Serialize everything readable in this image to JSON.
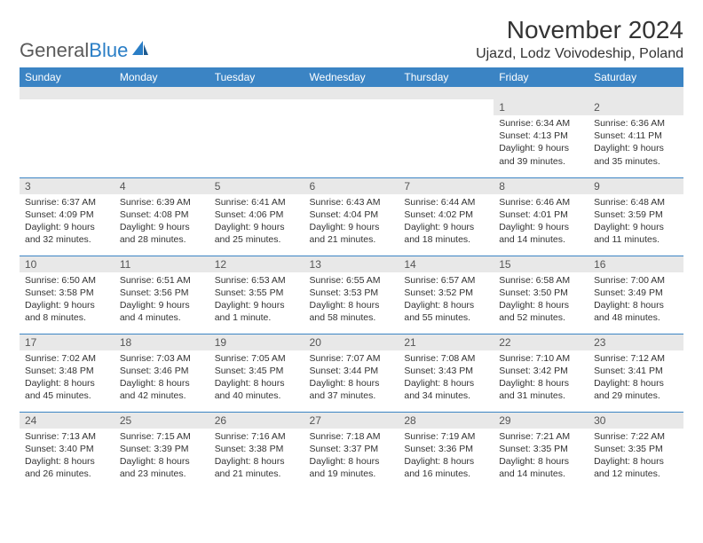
{
  "logo": {
    "text1": "General",
    "text2": "Blue"
  },
  "title": "November 2024",
  "location": "Ujazd, Lodz Voivodeship, Poland",
  "colors": {
    "header_bg": "#3b84c4",
    "header_text": "#ffffff",
    "daynum_bg": "#e8e8e8",
    "border": "#3b84c4",
    "logo_gray": "#5a5a5a",
    "logo_blue": "#2a7ec6"
  },
  "dayHeaders": [
    "Sunday",
    "Monday",
    "Tuesday",
    "Wednesday",
    "Thursday",
    "Friday",
    "Saturday"
  ],
  "weeks": [
    [
      {
        "n": "",
        "sunrise": "",
        "sunset": "",
        "daylight": ""
      },
      {
        "n": "",
        "sunrise": "",
        "sunset": "",
        "daylight": ""
      },
      {
        "n": "",
        "sunrise": "",
        "sunset": "",
        "daylight": ""
      },
      {
        "n": "",
        "sunrise": "",
        "sunset": "",
        "daylight": ""
      },
      {
        "n": "",
        "sunrise": "",
        "sunset": "",
        "daylight": ""
      },
      {
        "n": "1",
        "sunrise": "Sunrise: 6:34 AM",
        "sunset": "Sunset: 4:13 PM",
        "daylight": "Daylight: 9 hours and 39 minutes."
      },
      {
        "n": "2",
        "sunrise": "Sunrise: 6:36 AM",
        "sunset": "Sunset: 4:11 PM",
        "daylight": "Daylight: 9 hours and 35 minutes."
      }
    ],
    [
      {
        "n": "3",
        "sunrise": "Sunrise: 6:37 AM",
        "sunset": "Sunset: 4:09 PM",
        "daylight": "Daylight: 9 hours and 32 minutes."
      },
      {
        "n": "4",
        "sunrise": "Sunrise: 6:39 AM",
        "sunset": "Sunset: 4:08 PM",
        "daylight": "Daylight: 9 hours and 28 minutes."
      },
      {
        "n": "5",
        "sunrise": "Sunrise: 6:41 AM",
        "sunset": "Sunset: 4:06 PM",
        "daylight": "Daylight: 9 hours and 25 minutes."
      },
      {
        "n": "6",
        "sunrise": "Sunrise: 6:43 AM",
        "sunset": "Sunset: 4:04 PM",
        "daylight": "Daylight: 9 hours and 21 minutes."
      },
      {
        "n": "7",
        "sunrise": "Sunrise: 6:44 AM",
        "sunset": "Sunset: 4:02 PM",
        "daylight": "Daylight: 9 hours and 18 minutes."
      },
      {
        "n": "8",
        "sunrise": "Sunrise: 6:46 AM",
        "sunset": "Sunset: 4:01 PM",
        "daylight": "Daylight: 9 hours and 14 minutes."
      },
      {
        "n": "9",
        "sunrise": "Sunrise: 6:48 AM",
        "sunset": "Sunset: 3:59 PM",
        "daylight": "Daylight: 9 hours and 11 minutes."
      }
    ],
    [
      {
        "n": "10",
        "sunrise": "Sunrise: 6:50 AM",
        "sunset": "Sunset: 3:58 PM",
        "daylight": "Daylight: 9 hours and 8 minutes."
      },
      {
        "n": "11",
        "sunrise": "Sunrise: 6:51 AM",
        "sunset": "Sunset: 3:56 PM",
        "daylight": "Daylight: 9 hours and 4 minutes."
      },
      {
        "n": "12",
        "sunrise": "Sunrise: 6:53 AM",
        "sunset": "Sunset: 3:55 PM",
        "daylight": "Daylight: 9 hours and 1 minute."
      },
      {
        "n": "13",
        "sunrise": "Sunrise: 6:55 AM",
        "sunset": "Sunset: 3:53 PM",
        "daylight": "Daylight: 8 hours and 58 minutes."
      },
      {
        "n": "14",
        "sunrise": "Sunrise: 6:57 AM",
        "sunset": "Sunset: 3:52 PM",
        "daylight": "Daylight: 8 hours and 55 minutes."
      },
      {
        "n": "15",
        "sunrise": "Sunrise: 6:58 AM",
        "sunset": "Sunset: 3:50 PM",
        "daylight": "Daylight: 8 hours and 52 minutes."
      },
      {
        "n": "16",
        "sunrise": "Sunrise: 7:00 AM",
        "sunset": "Sunset: 3:49 PM",
        "daylight": "Daylight: 8 hours and 48 minutes."
      }
    ],
    [
      {
        "n": "17",
        "sunrise": "Sunrise: 7:02 AM",
        "sunset": "Sunset: 3:48 PM",
        "daylight": "Daylight: 8 hours and 45 minutes."
      },
      {
        "n": "18",
        "sunrise": "Sunrise: 7:03 AM",
        "sunset": "Sunset: 3:46 PM",
        "daylight": "Daylight: 8 hours and 42 minutes."
      },
      {
        "n": "19",
        "sunrise": "Sunrise: 7:05 AM",
        "sunset": "Sunset: 3:45 PM",
        "daylight": "Daylight: 8 hours and 40 minutes."
      },
      {
        "n": "20",
        "sunrise": "Sunrise: 7:07 AM",
        "sunset": "Sunset: 3:44 PM",
        "daylight": "Daylight: 8 hours and 37 minutes."
      },
      {
        "n": "21",
        "sunrise": "Sunrise: 7:08 AM",
        "sunset": "Sunset: 3:43 PM",
        "daylight": "Daylight: 8 hours and 34 minutes."
      },
      {
        "n": "22",
        "sunrise": "Sunrise: 7:10 AM",
        "sunset": "Sunset: 3:42 PM",
        "daylight": "Daylight: 8 hours and 31 minutes."
      },
      {
        "n": "23",
        "sunrise": "Sunrise: 7:12 AM",
        "sunset": "Sunset: 3:41 PM",
        "daylight": "Daylight: 8 hours and 29 minutes."
      }
    ],
    [
      {
        "n": "24",
        "sunrise": "Sunrise: 7:13 AM",
        "sunset": "Sunset: 3:40 PM",
        "daylight": "Daylight: 8 hours and 26 minutes."
      },
      {
        "n": "25",
        "sunrise": "Sunrise: 7:15 AM",
        "sunset": "Sunset: 3:39 PM",
        "daylight": "Daylight: 8 hours and 23 minutes."
      },
      {
        "n": "26",
        "sunrise": "Sunrise: 7:16 AM",
        "sunset": "Sunset: 3:38 PM",
        "daylight": "Daylight: 8 hours and 21 minutes."
      },
      {
        "n": "27",
        "sunrise": "Sunrise: 7:18 AM",
        "sunset": "Sunset: 3:37 PM",
        "daylight": "Daylight: 8 hours and 19 minutes."
      },
      {
        "n": "28",
        "sunrise": "Sunrise: 7:19 AM",
        "sunset": "Sunset: 3:36 PM",
        "daylight": "Daylight: 8 hours and 16 minutes."
      },
      {
        "n": "29",
        "sunrise": "Sunrise: 7:21 AM",
        "sunset": "Sunset: 3:35 PM",
        "daylight": "Daylight: 8 hours and 14 minutes."
      },
      {
        "n": "30",
        "sunrise": "Sunrise: 7:22 AM",
        "sunset": "Sunset: 3:35 PM",
        "daylight": "Daylight: 8 hours and 12 minutes."
      }
    ]
  ]
}
